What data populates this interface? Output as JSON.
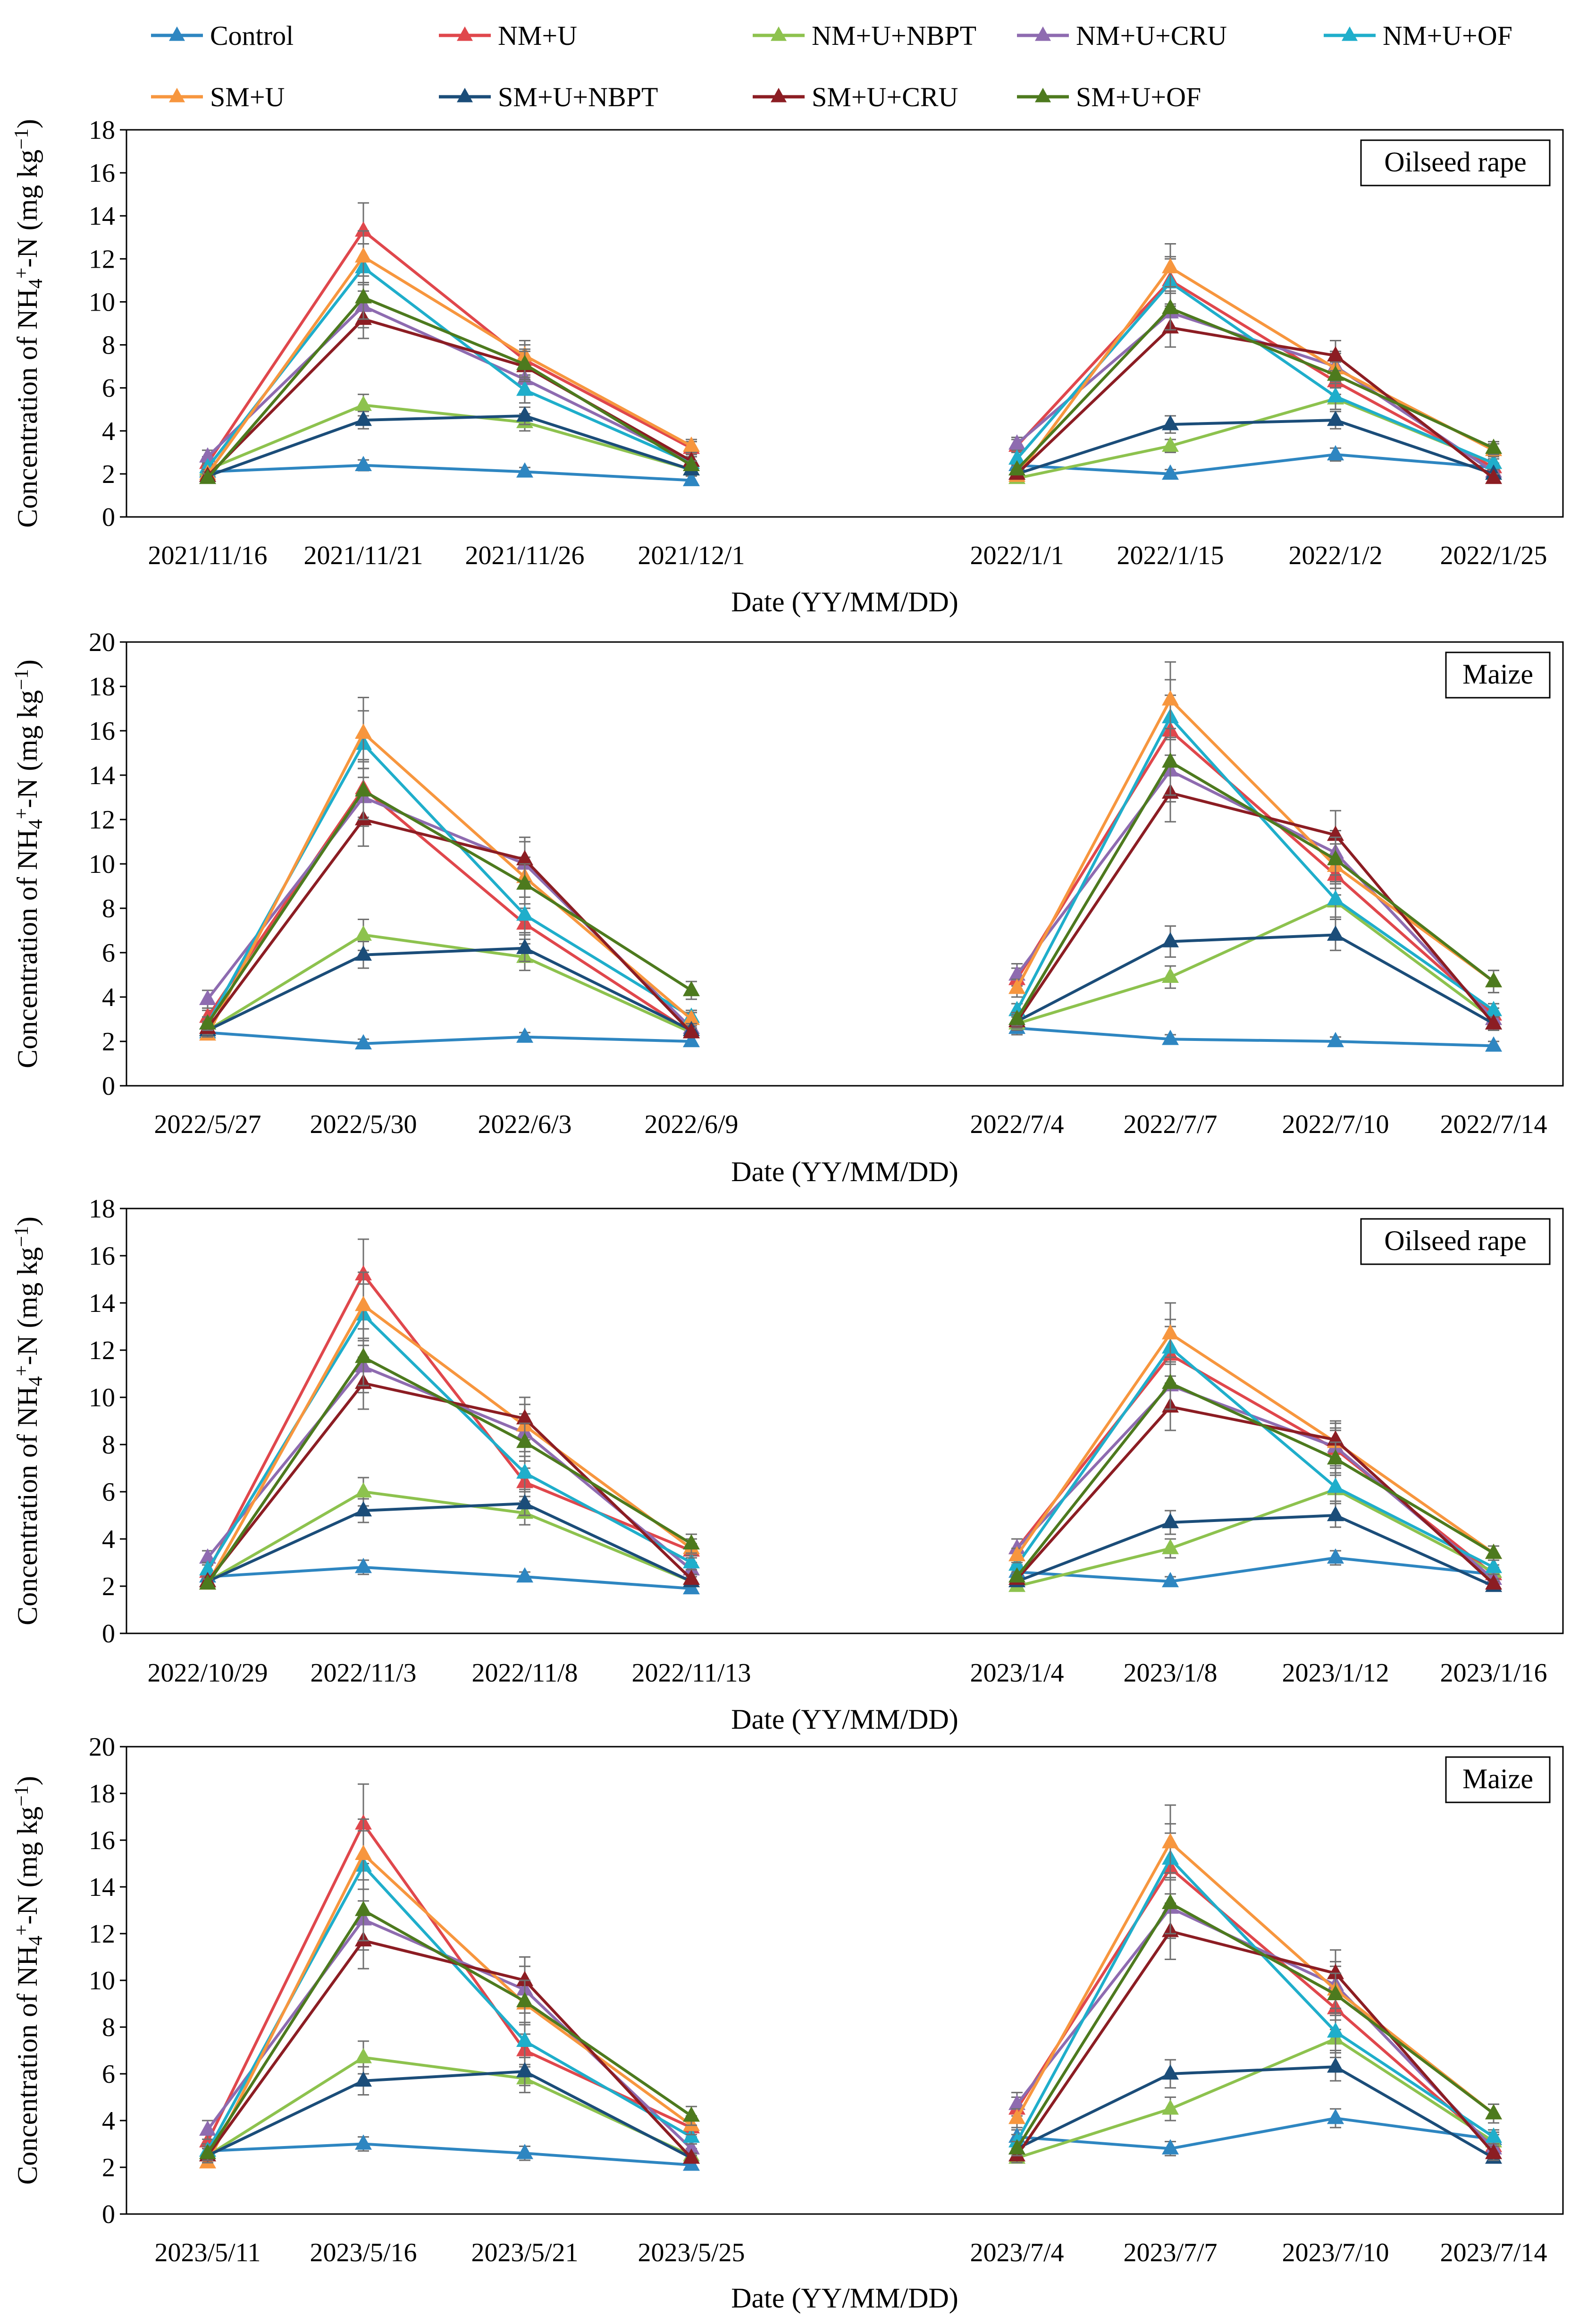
{
  "legend": [
    {
      "name": "Control",
      "color": "#2E86C1"
    },
    {
      "name": "NM+U",
      "color": "#E0474C"
    },
    {
      "name": "NM+U+NBPT",
      "color": "#8DC24E"
    },
    {
      "name": "NM+U+CRU",
      "color": "#8E6BB0"
    },
    {
      "name": "NM+U+OF",
      "color": "#1FAECB"
    },
    {
      "name": "SM+U",
      "color": "#F7963E"
    },
    {
      "name": "SM+U+NBPT",
      "color": "#1B4D79"
    },
    {
      "name": "SM+U+CRU",
      "color": "#8C1D23"
    },
    {
      "name": "SM+U+OF",
      "color": "#4D7A1E"
    }
  ],
  "chart_data": [
    {
      "type": "line",
      "crop": "Oilseed rape",
      "ylabel": "Concentration of NH4+-N (mg kg−1)",
      "xlabel": "Date (YY/MM/DD)",
      "ylim": [
        0,
        18
      ],
      "ytick_step": 2,
      "categories": [
        "2021/11/16",
        "2021/11/21",
        "2021/11/26",
        "2021/12/1",
        "2022/1/1",
        "2022/1/15",
        "2022/1/2",
        "2022/1/25"
      ],
      "series": [
        {
          "name": "Control",
          "values": [
            2.1,
            2.4,
            2.1,
            1.7,
            2.4,
            2.0,
            2.9,
            2.3
          ],
          "errors": [
            0.2,
            0.25,
            0.2,
            0.2,
            0.25,
            0.2,
            0.3,
            0.2
          ]
        },
        {
          "name": "NM+U",
          "values": [
            2.5,
            13.3,
            7.3,
            3.2,
            3.3,
            11.0,
            6.3,
            2.3
          ],
          "errors": [
            0.3,
            1.3,
            0.7,
            0.3,
            0.3,
            1.1,
            0.6,
            0.2
          ]
        },
        {
          "name": "NM+U+NBPT",
          "values": [
            2.2,
            5.2,
            4.4,
            2.2,
            1.8,
            3.3,
            5.5,
            2.5
          ],
          "errors": [
            0.2,
            0.5,
            0.4,
            0.2,
            0.2,
            0.3,
            0.5,
            0.2
          ]
        },
        {
          "name": "NM+U+CRU",
          "values": [
            2.8,
            9.8,
            6.4,
            2.6,
            3.4,
            9.5,
            7.0,
            2.1
          ],
          "errors": [
            0.3,
            1.0,
            0.6,
            0.3,
            0.3,
            0.9,
            0.7,
            0.2
          ]
        },
        {
          "name": "NM+U+OF",
          "values": [
            2.3,
            11.6,
            5.9,
            2.5,
            2.7,
            10.9,
            5.6,
            2.5
          ],
          "errors": [
            0.2,
            1.1,
            0.6,
            0.3,
            0.3,
            1.1,
            0.6,
            0.3
          ]
        },
        {
          "name": "SM+U",
          "values": [
            2.0,
            12.1,
            7.5,
            3.3,
            1.9,
            11.6,
            6.9,
            3.1
          ],
          "errors": [
            0.2,
            1.2,
            0.7,
            0.3,
            0.2,
            1.1,
            0.7,
            0.3
          ]
        },
        {
          "name": "SM+U+NBPT",
          "values": [
            1.9,
            4.5,
            4.7,
            2.2,
            2.0,
            4.3,
            4.5,
            2.0
          ],
          "errors": [
            0.2,
            0.4,
            0.4,
            0.2,
            0.2,
            0.4,
            0.4,
            0.2
          ]
        },
        {
          "name": "SM+U+CRU",
          "values": [
            1.9,
            9.2,
            7.0,
            2.6,
            2.0,
            8.8,
            7.5,
            1.8
          ],
          "errors": [
            0.2,
            0.9,
            0.7,
            0.3,
            0.2,
            0.9,
            0.7,
            0.2
          ]
        },
        {
          "name": "SM+U+OF",
          "values": [
            1.8,
            10.2,
            7.1,
            2.4,
            2.2,
            9.7,
            6.6,
            3.2
          ],
          "errors": [
            0.2,
            1.0,
            0.7,
            0.2,
            0.2,
            1.0,
            0.6,
            0.3
          ]
        }
      ]
    },
    {
      "type": "line",
      "crop": "Maize",
      "ylabel": "Concentration of NH4+-N (mg kg−1)",
      "xlabel": "Date (YY/MM/DD)",
      "ylim": [
        0,
        20
      ],
      "ytick_step": 2,
      "categories": [
        "2022/5/27",
        "2022/5/30",
        "2022/6/3",
        "2022/6/9",
        "2022/7/4",
        "2022/7/7",
        "2022/7/10",
        "2022/7/14"
      ],
      "series": [
        {
          "name": "Control",
          "values": [
            2.4,
            1.9,
            2.2,
            2.0,
            2.6,
            2.1,
            2.0,
            1.8
          ],
          "errors": [
            0.2,
            0.2,
            0.2,
            0.2,
            0.3,
            0.2,
            0.2,
            0.2
          ]
        },
        {
          "name": "NM+U",
          "values": [
            3.1,
            13.4,
            7.3,
            2.4,
            4.8,
            16.0,
            9.5,
            3.2
          ],
          "errors": [
            0.3,
            1.3,
            0.7,
            0.2,
            0.5,
            1.6,
            0.9,
            0.3
          ]
        },
        {
          "name": "NM+U+NBPT",
          "values": [
            2.5,
            6.8,
            5.8,
            2.4,
            2.8,
            4.9,
            8.3,
            3.0
          ],
          "errors": [
            0.3,
            0.7,
            0.6,
            0.2,
            0.3,
            0.5,
            0.8,
            0.3
          ]
        },
        {
          "name": "NM+U+CRU",
          "values": [
            3.9,
            13.0,
            10.0,
            2.6,
            5.0,
            14.2,
            10.5,
            3.0
          ],
          "errors": [
            0.4,
            1.3,
            1.0,
            0.3,
            0.5,
            1.4,
            1.0,
            0.3
          ]
        },
        {
          "name": "NM+U+OF",
          "values": [
            2.8,
            15.4,
            7.7,
            3.1,
            3.4,
            16.6,
            8.4,
            3.4
          ],
          "errors": [
            0.3,
            1.5,
            0.8,
            0.3,
            0.3,
            1.7,
            0.8,
            0.3
          ]
        },
        {
          "name": "SM+U",
          "values": [
            2.3,
            15.9,
            9.4,
            3.0,
            4.4,
            17.4,
            9.9,
            4.7
          ],
          "errors": [
            0.2,
            1.6,
            0.9,
            0.3,
            0.4,
            1.7,
            1.0,
            0.5
          ]
        },
        {
          "name": "SM+U+NBPT",
          "values": [
            2.5,
            5.9,
            6.2,
            2.5,
            2.9,
            6.5,
            6.8,
            2.8
          ],
          "errors": [
            0.3,
            0.6,
            0.6,
            0.3,
            0.3,
            0.7,
            0.7,
            0.3
          ]
        },
        {
          "name": "SM+U+CRU",
          "values": [
            2.6,
            12.0,
            10.2,
            2.4,
            2.9,
            13.2,
            11.3,
            2.8
          ],
          "errors": [
            0.3,
            1.2,
            1.0,
            0.2,
            0.3,
            1.3,
            1.1,
            0.3
          ]
        },
        {
          "name": "SM+U+OF",
          "values": [
            2.8,
            13.3,
            9.1,
            4.3,
            3.0,
            14.6,
            10.2,
            4.7
          ],
          "errors": [
            0.3,
            1.3,
            0.9,
            0.4,
            0.3,
            1.5,
            1.0,
            0.5
          ]
        }
      ]
    },
    {
      "type": "line",
      "crop": "Oilseed rape",
      "ylabel": "Concentration of NH4+-N (mg kg−1)",
      "xlabel": "Date (YY/MM/DD)",
      "ylim": [
        0,
        18
      ],
      "ytick_step": 2,
      "categories": [
        "2022/10/29",
        "2022/11/3",
        "2022/11/8",
        "2022/11/13",
        "2023/1/4",
        "2023/1/8",
        "2023/1/12",
        "2023/1/16"
      ],
      "series": [
        {
          "name": "Control",
          "values": [
            2.4,
            2.8,
            2.4,
            1.9,
            2.6,
            2.2,
            3.2,
            2.5
          ],
          "errors": [
            0.2,
            0.3,
            0.2,
            0.2,
            0.3,
            0.2,
            0.3,
            0.2
          ]
        },
        {
          "name": "NM+U",
          "values": [
            2.6,
            15.2,
            6.4,
            3.5,
            3.6,
            11.8,
            7.8,
            2.5
          ],
          "errors": [
            0.3,
            1.5,
            0.6,
            0.3,
            0.4,
            1.2,
            0.8,
            0.3
          ]
        },
        {
          "name": "NM+U+NBPT",
          "values": [
            2.2,
            6.0,
            5.1,
            2.2,
            2.0,
            3.6,
            6.1,
            2.6
          ],
          "errors": [
            0.2,
            0.6,
            0.5,
            0.2,
            0.2,
            0.4,
            0.6,
            0.3
          ]
        },
        {
          "name": "NM+U+CRU",
          "values": [
            3.2,
            11.3,
            8.5,
            2.7,
            3.6,
            10.5,
            7.9,
            2.3
          ],
          "errors": [
            0.3,
            1.1,
            0.8,
            0.3,
            0.4,
            1.0,
            0.8,
            0.2
          ]
        },
        {
          "name": "NM+U+OF",
          "values": [
            2.7,
            13.5,
            6.8,
            3.0,
            2.9,
            12.1,
            6.2,
            2.8
          ],
          "errors": [
            0.3,
            1.3,
            0.7,
            0.3,
            0.3,
            1.2,
            0.6,
            0.3
          ]
        },
        {
          "name": "SM+U",
          "values": [
            2.1,
            13.9,
            8.8,
            3.6,
            3.3,
            12.7,
            8.1,
            3.4
          ],
          "errors": [
            0.2,
            1.4,
            0.9,
            0.4,
            0.3,
            1.3,
            0.8,
            0.3
          ]
        },
        {
          "name": "SM+U+NBPT",
          "values": [
            2.2,
            5.2,
            5.5,
            2.2,
            2.2,
            4.7,
            5.0,
            2.0
          ],
          "errors": [
            0.2,
            0.5,
            0.5,
            0.2,
            0.2,
            0.5,
            0.5,
            0.2
          ]
        },
        {
          "name": "SM+U+CRU",
          "values": [
            2.2,
            10.6,
            9.1,
            2.3,
            2.3,
            9.6,
            8.2,
            2.1
          ],
          "errors": [
            0.2,
            1.1,
            0.9,
            0.2,
            0.2,
            1.0,
            0.8,
            0.2
          ]
        },
        {
          "name": "SM+U+OF",
          "values": [
            2.1,
            11.7,
            8.1,
            3.8,
            2.4,
            10.6,
            7.4,
            3.4
          ],
          "errors": [
            0.2,
            1.2,
            0.8,
            0.4,
            0.2,
            1.1,
            0.7,
            0.3
          ]
        }
      ]
    },
    {
      "type": "line",
      "crop": "Maize",
      "ylabel": "Concentration of NH4+-N (mg kg−1)",
      "xlabel": "Date (YY/MM/DD)",
      "ylim": [
        0,
        20
      ],
      "ytick_step": 2,
      "categories": [
        "2023/5/11",
        "2023/5/16",
        "2023/5/21",
        "2023/5/25",
        "2023/7/4",
        "2023/7/7",
        "2023/7/10",
        "2023/7/14"
      ],
      "series": [
        {
          "name": "Control",
          "values": [
            2.7,
            3.0,
            2.6,
            2.1,
            3.3,
            2.8,
            4.1,
            3.2
          ],
          "errors": [
            0.3,
            0.3,
            0.3,
            0.2,
            0.3,
            0.3,
            0.4,
            0.3
          ]
        },
        {
          "name": "NM+U",
          "values": [
            3.1,
            16.7,
            7.0,
            3.7,
            4.5,
            14.8,
            8.8,
            2.9
          ],
          "errors": [
            0.3,
            1.7,
            0.7,
            0.4,
            0.5,
            1.5,
            0.9,
            0.3
          ]
        },
        {
          "name": "NM+U+NBPT",
          "values": [
            2.5,
            6.7,
            5.8,
            2.5,
            2.4,
            4.5,
            7.5,
            3.1
          ],
          "errors": [
            0.3,
            0.7,
            0.6,
            0.3,
            0.2,
            0.5,
            0.8,
            0.3
          ]
        },
        {
          "name": "NM+U+CRU",
          "values": [
            3.6,
            12.6,
            9.6,
            2.8,
            4.7,
            13.1,
            9.8,
            2.8
          ],
          "errors": [
            0.4,
            1.3,
            1.0,
            0.3,
            0.5,
            1.3,
            1.0,
            0.3
          ]
        },
        {
          "name": "NM+U+OF",
          "values": [
            2.7,
            14.9,
            7.4,
            3.3,
            3.1,
            15.2,
            7.8,
            3.3
          ],
          "errors": [
            0.3,
            1.5,
            0.7,
            0.3,
            0.3,
            1.5,
            0.8,
            0.3
          ]
        },
        {
          "name": "SM+U",
          "values": [
            2.2,
            15.4,
            9.0,
            3.8,
            4.1,
            15.9,
            9.6,
            4.3
          ],
          "errors": [
            0.2,
            1.5,
            0.9,
            0.4,
            0.4,
            1.6,
            1.0,
            0.4
          ]
        },
        {
          "name": "SM+U+NBPT",
          "values": [
            2.5,
            5.7,
            6.1,
            2.4,
            2.8,
            6.0,
            6.3,
            2.4
          ],
          "errors": [
            0.3,
            0.6,
            0.6,
            0.2,
            0.3,
            0.6,
            0.6,
            0.2
          ]
        },
        {
          "name": "SM+U+CRU",
          "values": [
            2.5,
            11.7,
            10.0,
            2.4,
            2.5,
            12.1,
            10.3,
            2.6
          ],
          "errors": [
            0.3,
            1.2,
            1.0,
            0.2,
            0.3,
            1.2,
            1.0,
            0.3
          ]
        },
        {
          "name": "SM+U+OF",
          "values": [
            2.6,
            13.0,
            9.1,
            4.2,
            2.8,
            13.3,
            9.4,
            4.3
          ],
          "errors": [
            0.3,
            1.3,
            0.9,
            0.4,
            0.3,
            1.3,
            0.9,
            0.4
          ]
        }
      ]
    }
  ]
}
